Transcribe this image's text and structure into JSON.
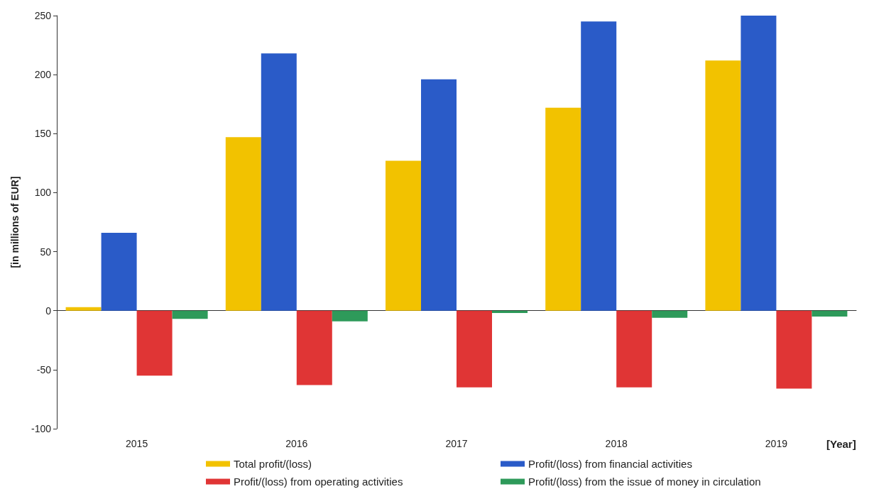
{
  "chart_data": {
    "type": "bar",
    "ylabel": "[in millions of EUR]",
    "xlabel": "[Year]",
    "categories": [
      "2015",
      "2016",
      "2017",
      "2018",
      "2019"
    ],
    "series": [
      {
        "name": "Total profit/(loss)",
        "color": "#f2c200",
        "values": [
          3,
          147,
          127,
          172,
          212
        ]
      },
      {
        "name": "Profit/(loss) from financial activities",
        "color": "#2a5bc8",
        "values": [
          66,
          218,
          196,
          245,
          250
        ]
      },
      {
        "name": "Profit/(loss) from operating activities",
        "color": "#e03535",
        "values": [
          -55,
          -63,
          -65,
          -65,
          -66
        ]
      },
      {
        "name": "Profit/(loss) from the issue of money in circulation",
        "color": "#2e9a5a",
        "values": [
          -7,
          -9,
          -2,
          -6,
          -5
        ]
      }
    ],
    "ylim": [
      -100,
      250
    ],
    "yticks": [
      -100,
      -50,
      0,
      50,
      100,
      150,
      200,
      250
    ],
    "legend": "bottom"
  }
}
